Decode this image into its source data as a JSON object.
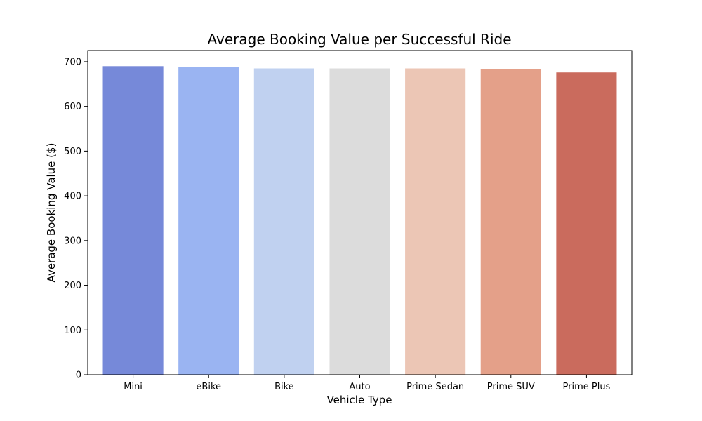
{
  "chart_data": {
    "type": "bar",
    "title": "Average Booking Value per Successful Ride",
    "xlabel": "Vehicle Type",
    "ylabel": "Average Booking Value ($)",
    "categories": [
      "Mini",
      "eBike",
      "Bike",
      "Auto",
      "Prime Sedan",
      "Prime SUV",
      "Prime Plus"
    ],
    "values": [
      690,
      688,
      685,
      685,
      685,
      684,
      676
    ],
    "colors": [
      "#7689D9",
      "#9AB4F2",
      "#C0D1F0",
      "#DCDCDC",
      "#ECC6B5",
      "#E4A089",
      "#CA6B5D"
    ],
    "ylim": [
      0,
      725
    ],
    "yticks": [
      0,
      100,
      200,
      300,
      400,
      500,
      600,
      700
    ],
    "grid": false,
    "legend": "none"
  }
}
